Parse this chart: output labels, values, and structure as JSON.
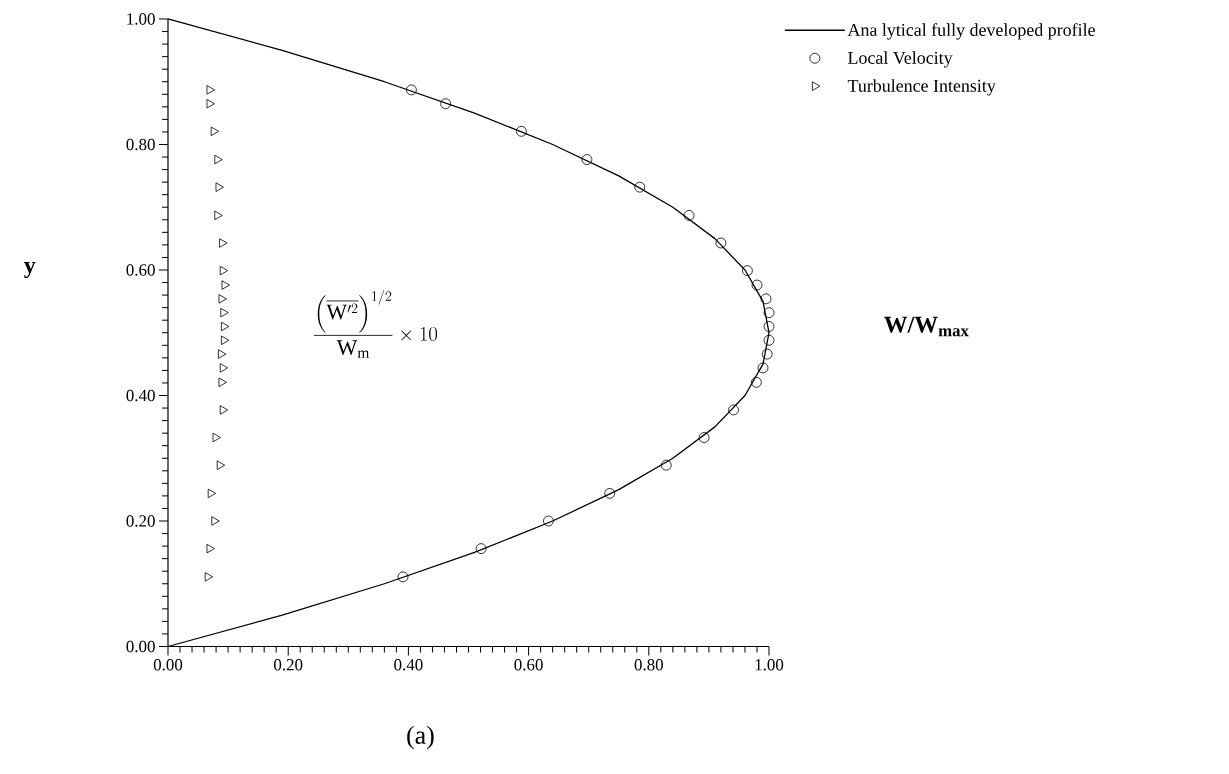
{
  "chart_data": {
    "type": "line",
    "xlabel": "W/W$_{max}$",
    "ylabel": "y",
    "annotations": [
      "\\frac{\\left(\\overline{\\mathrm{W}'^{2}}\\right)^{1/2}}{\\mathrm{W}_{\\mathrm{m}}}\\times 10",
      "(a)"
    ],
    "xlim": [
      0,
      1
    ],
    "ylim": [
      0,
      1
    ],
    "xticks": [
      {
        "value": 0,
        "label": "0.00"
      },
      {
        "value": 0.2,
        "label": "0.20"
      },
      {
        "value": 0.4,
        "label": "0.40"
      },
      {
        "value": 0.6,
        "label": "0.60"
      },
      {
        "value": 0.8,
        "label": "0.80"
      },
      {
        "value": 1,
        "label": "1.00"
      }
    ],
    "yticks": [
      {
        "value": 0,
        "label": "0.00"
      },
      {
        "value": 0.2,
        "label": "0.20"
      },
      {
        "value": 0.4,
        "label": "0.40"
      },
      {
        "value": 0.6,
        "label": "0.60"
      },
      {
        "value": 0.8,
        "label": "0.80"
      },
      {
        "value": 1,
        "label": "1.00"
      }
    ],
    "legend": "top right",
    "series": [
      {
        "name": "Ana lytical fully developed profile",
        "color": "#000000",
        "marker": "none",
        "x": [
          0,
          0.19,
          0.36,
          0.51,
          0.64,
          0.75,
          0.84,
          0.91,
          0.96,
          0.99,
          1.0,
          0.99,
          0.96,
          0.91,
          0.84,
          0.75,
          0.64,
          0.51,
          0.36,
          0.19,
          0
        ],
        "values": [
          0,
          0.05,
          0.1,
          0.15,
          0.2,
          0.25,
          0.3,
          0.35,
          0.4,
          0.45,
          0.5,
          0.55,
          0.6,
          0.65,
          0.7,
          0.75,
          0.8,
          0.85,
          0.9,
          0.95,
          1.0
        ]
      },
      {
        "name": "Local Velocity",
        "type": "scatter",
        "color": "#000000",
        "marker": "circle",
        "x": [
          0.405,
          0.462,
          0.588,
          0.697,
          0.785,
          0.867,
          0.92,
          0.964,
          0.98,
          0.995,
          1.0,
          1.0,
          1.0,
          0.997,
          0.99,
          0.979,
          0.941,
          0.892,
          0.829,
          0.735,
          0.633,
          0.521,
          0.391
        ],
        "values": [
          0.887,
          0.865,
          0.821,
          0.776,
          0.732,
          0.687,
          0.643,
          0.599,
          0.576,
          0.554,
          0.532,
          0.51,
          0.488,
          0.466,
          0.444,
          0.421,
          0.377,
          0.333,
          0.289,
          0.244,
          0.2,
          0.156,
          0.111
        ]
      },
      {
        "name": "Turbulence Intensity",
        "type": "scatter",
        "color": "#000000",
        "marker": "triangle",
        "x": [
          0.069,
          0.069,
          0.076,
          0.082,
          0.084,
          0.082,
          0.09,
          0.091,
          0.094,
          0.089,
          0.092,
          0.093,
          0.093,
          0.088,
          0.091,
          0.089,
          0.091,
          0.079,
          0.086,
          0.071,
          0.077,
          0.069,
          0.066
        ],
        "values": [
          0.887,
          0.865,
          0.821,
          0.776,
          0.732,
          0.687,
          0.643,
          0.599,
          0.576,
          0.554,
          0.532,
          0.51,
          0.488,
          0.466,
          0.444,
          0.421,
          0.377,
          0.333,
          0.289,
          0.244,
          0.2,
          0.156,
          0.111
        ]
      }
    ]
  }
}
